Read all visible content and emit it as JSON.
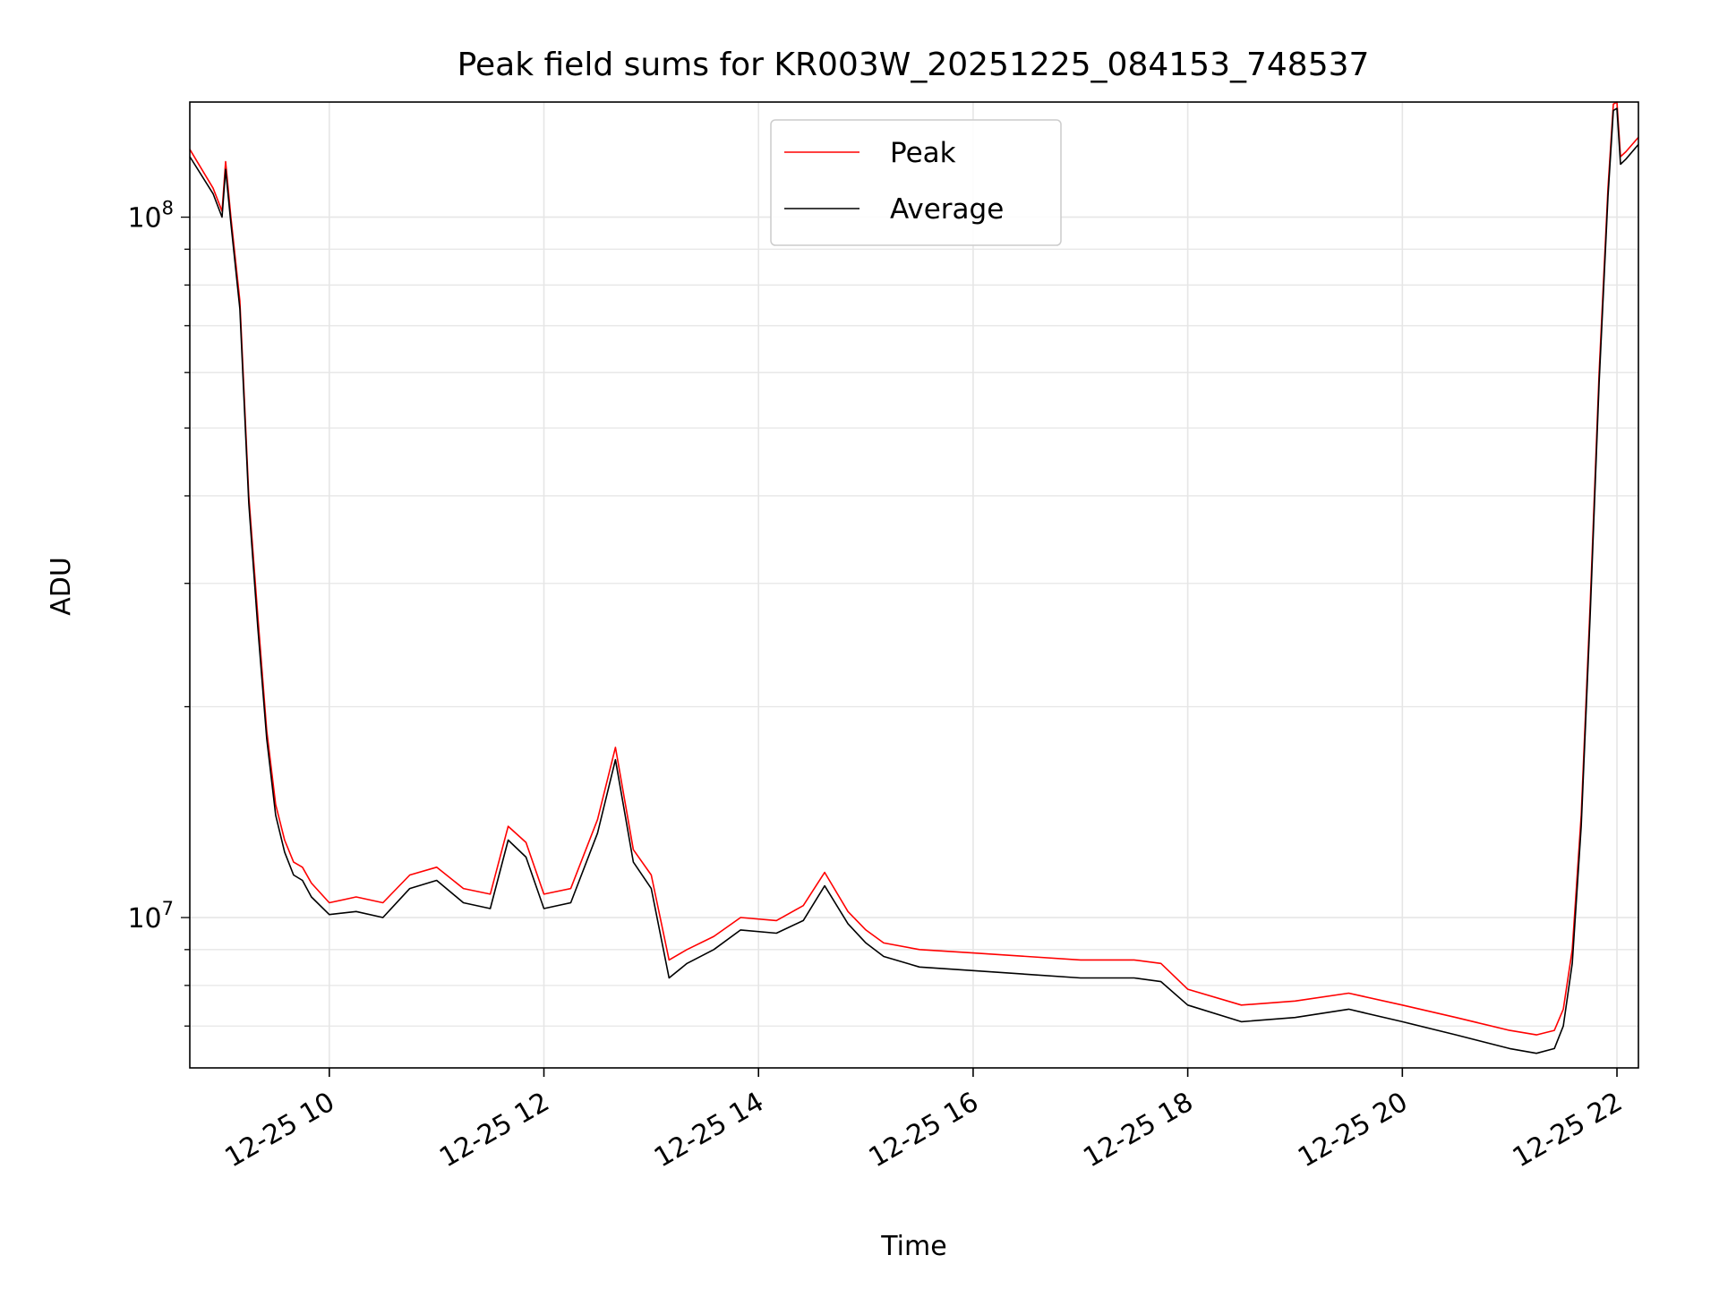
{
  "chart_data": {
    "type": "line",
    "title": "Peak field sums for KR003W_20251225_084153_748537",
    "xlabel": "Time",
    "ylabel": "ADU",
    "yscale": "log",
    "grid": true,
    "legend_position": "top-center",
    "xlim": [
      "2025-12-25 08:42",
      "2025-12-25 22:12"
    ],
    "ylim": [
      6100000,
      146000000
    ],
    "x_ticks": [
      {
        "value": "2025-12-25 10:00",
        "label": "12-25 10"
      },
      {
        "value": "2025-12-25 12:00",
        "label": "12-25 12"
      },
      {
        "value": "2025-12-25 14:00",
        "label": "12-25 14"
      },
      {
        "value": "2025-12-25 16:00",
        "label": "12-25 16"
      },
      {
        "value": "2025-12-25 18:00",
        "label": "12-25 18"
      },
      {
        "value": "2025-12-25 20:00",
        "label": "12-25 20"
      },
      {
        "value": "2025-12-25 22:00",
        "label": "12-25 22"
      }
    ],
    "y_ticks": [
      {
        "value": 10000000,
        "base": "10",
        "exp": "7"
      },
      {
        "value": 100000000,
        "base": "10",
        "exp": "8"
      }
    ],
    "series": [
      {
        "name": "Peak",
        "color": "#ff0000",
        "x": [
          "2025-12-25 08:42",
          "2025-12-25 08:55",
          "2025-12-25 09:00",
          "2025-12-25 09:02",
          "2025-12-25 09:05",
          "2025-12-25 09:10",
          "2025-12-25 09:15",
          "2025-12-25 09:20",
          "2025-12-25 09:25",
          "2025-12-25 09:30",
          "2025-12-25 09:35",
          "2025-12-25 09:40",
          "2025-12-25 09:45",
          "2025-12-25 09:50",
          "2025-12-25 10:00",
          "2025-12-25 10:15",
          "2025-12-25 10:30",
          "2025-12-25 10:45",
          "2025-12-25 11:00",
          "2025-12-25 11:15",
          "2025-12-25 11:30",
          "2025-12-25 11:40",
          "2025-12-25 11:50",
          "2025-12-25 12:00",
          "2025-12-25 12:15",
          "2025-12-25 12:30",
          "2025-12-25 12:40",
          "2025-12-25 12:50",
          "2025-12-25 13:00",
          "2025-12-25 13:10",
          "2025-12-25 13:20",
          "2025-12-25 13:35",
          "2025-12-25 13:50",
          "2025-12-25 14:10",
          "2025-12-25 14:25",
          "2025-12-25 14:37",
          "2025-12-25 14:50",
          "2025-12-25 15:00",
          "2025-12-25 15:10",
          "2025-12-25 15:30",
          "2025-12-25 16:00",
          "2025-12-25 16:30",
          "2025-12-25 17:00",
          "2025-12-25 17:30",
          "2025-12-25 17:45",
          "2025-12-25 18:00",
          "2025-12-25 18:30",
          "2025-12-25 19:00",
          "2025-12-25 19:30",
          "2025-12-25 20:00",
          "2025-12-25 20:30",
          "2025-12-25 21:00",
          "2025-12-25 21:15",
          "2025-12-25 21:25",
          "2025-12-25 21:30",
          "2025-12-25 21:35",
          "2025-12-25 21:40",
          "2025-12-25 21:45",
          "2025-12-25 21:50",
          "2025-12-25 21:55",
          "2025-12-25 21:58",
          "2025-12-25 22:00",
          "2025-12-25 22:02",
          "2025-12-25 22:05",
          "2025-12-25 22:12"
        ],
        "values": [
          125000000,
          110000000,
          102000000,
          120000000,
          100000000,
          76000000,
          40000000,
          27000000,
          18500000,
          14500000,
          12900000,
          12000000,
          11800000,
          11200000,
          10500000,
          10700000,
          10500000,
          11500000,
          11800000,
          11000000,
          10800000,
          13500000,
          12800000,
          10800000,
          11000000,
          13800000,
          17500000,
          12500000,
          11500000,
          8700000,
          9000000,
          9400000,
          10000000,
          9900000,
          10400000,
          11600000,
          10200000,
          9600000,
          9200000,
          9000000,
          8900000,
          8800000,
          8700000,
          8700000,
          8600000,
          7900000,
          7500000,
          7600000,
          7800000,
          7500000,
          7200000,
          6900000,
          6800000,
          6900000,
          7400000,
          9000000,
          14000000,
          28000000,
          60000000,
          110000000,
          145000000,
          146000000,
          122000000,
          124000000,
          130000000
        ]
      },
      {
        "name": "Average",
        "color": "#000000",
        "x": [
          "2025-12-25 08:42",
          "2025-12-25 08:55",
          "2025-12-25 09:00",
          "2025-12-25 09:02",
          "2025-12-25 09:05",
          "2025-12-25 09:10",
          "2025-12-25 09:15",
          "2025-12-25 09:20",
          "2025-12-25 09:25",
          "2025-12-25 09:30",
          "2025-12-25 09:35",
          "2025-12-25 09:40",
          "2025-12-25 09:45",
          "2025-12-25 09:50",
          "2025-12-25 10:00",
          "2025-12-25 10:15",
          "2025-12-25 10:30",
          "2025-12-25 10:45",
          "2025-12-25 11:00",
          "2025-12-25 11:15",
          "2025-12-25 11:30",
          "2025-12-25 11:40",
          "2025-12-25 11:50",
          "2025-12-25 12:00",
          "2025-12-25 12:15",
          "2025-12-25 12:30",
          "2025-12-25 12:40",
          "2025-12-25 12:50",
          "2025-12-25 13:00",
          "2025-12-25 13:10",
          "2025-12-25 13:20",
          "2025-12-25 13:35",
          "2025-12-25 13:50",
          "2025-12-25 14:10",
          "2025-12-25 14:25",
          "2025-12-25 14:37",
          "2025-12-25 14:50",
          "2025-12-25 15:00",
          "2025-12-25 15:10",
          "2025-12-25 15:30",
          "2025-12-25 16:00",
          "2025-12-25 16:30",
          "2025-12-25 17:00",
          "2025-12-25 17:30",
          "2025-12-25 17:45",
          "2025-12-25 18:00",
          "2025-12-25 18:30",
          "2025-12-25 19:00",
          "2025-12-25 19:30",
          "2025-12-25 20:00",
          "2025-12-25 20:30",
          "2025-12-25 21:00",
          "2025-12-25 21:15",
          "2025-12-25 21:25",
          "2025-12-25 21:30",
          "2025-12-25 21:35",
          "2025-12-25 21:40",
          "2025-12-25 21:45",
          "2025-12-25 21:50",
          "2025-12-25 21:55",
          "2025-12-25 21:58",
          "2025-12-25 22:00",
          "2025-12-25 22:02",
          "2025-12-25 22:05",
          "2025-12-25 22:12"
        ],
        "values": [
          122000000,
          108000000,
          100000000,
          117000000,
          98000000,
          74000000,
          39000000,
          26000000,
          18000000,
          14000000,
          12400000,
          11500000,
          11300000,
          10700000,
          10100000,
          10200000,
          10000000,
          11000000,
          11300000,
          10500000,
          10300000,
          12900000,
          12200000,
          10300000,
          10500000,
          13200000,
          16800000,
          12000000,
          11000000,
          8200000,
          8600000,
          9000000,
          9600000,
          9500000,
          9900000,
          11100000,
          9800000,
          9200000,
          8800000,
          8500000,
          8400000,
          8300000,
          8200000,
          8200000,
          8100000,
          7500000,
          7100000,
          7200000,
          7400000,
          7100000,
          6800000,
          6500000,
          6400000,
          6500000,
          7000000,
          8600000,
          13500000,
          27000000,
          58000000,
          107000000,
          142000000,
          143000000,
          119000000,
          121000000,
          127000000
        ]
      }
    ]
  }
}
